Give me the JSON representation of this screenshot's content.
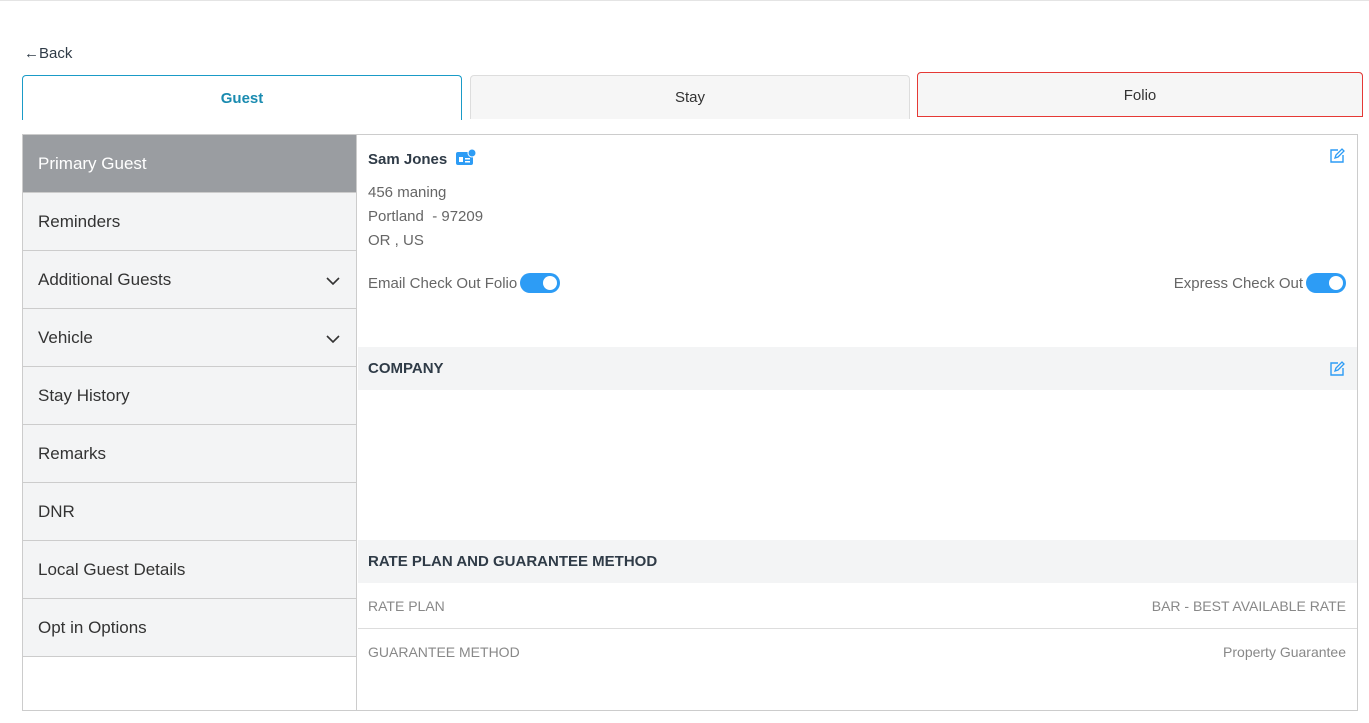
{
  "back_label": "Back",
  "tabs": [
    {
      "label": "Guest"
    },
    {
      "label": "Stay"
    },
    {
      "label": "Folio"
    }
  ],
  "sidebar": {
    "items": [
      {
        "label": "Primary Guest"
      },
      {
        "label": "Reminders"
      },
      {
        "label": "Additional Guests"
      },
      {
        "label": "Vehicle"
      },
      {
        "label": "Stay History"
      },
      {
        "label": "Remarks"
      },
      {
        "label": "DNR"
      },
      {
        "label": "Local Guest Details"
      },
      {
        "label": "Opt in Options"
      }
    ]
  },
  "guest": {
    "name": "Sam Jones",
    "address1": "456 maning",
    "address2": "Portland  - 97209",
    "address3": "OR , US",
    "email_folio_label": "Email Check Out Folio",
    "email_folio_on": true,
    "express_label": "Express Check Out",
    "express_on": true
  },
  "company": {
    "title": "COMPANY"
  },
  "rate": {
    "title": "RATE PLAN AND GUARANTEE METHOD",
    "rows": [
      {
        "label": "RATE PLAN",
        "value": "BAR - BEST AVAILABLE RATE"
      },
      {
        "label": "GUARANTEE METHOD",
        "value": "Property Guarantee"
      }
    ]
  },
  "colors": {
    "accent": "#1a9bc7",
    "toggle": "#2d9cf5",
    "highlight": "#e53935"
  }
}
